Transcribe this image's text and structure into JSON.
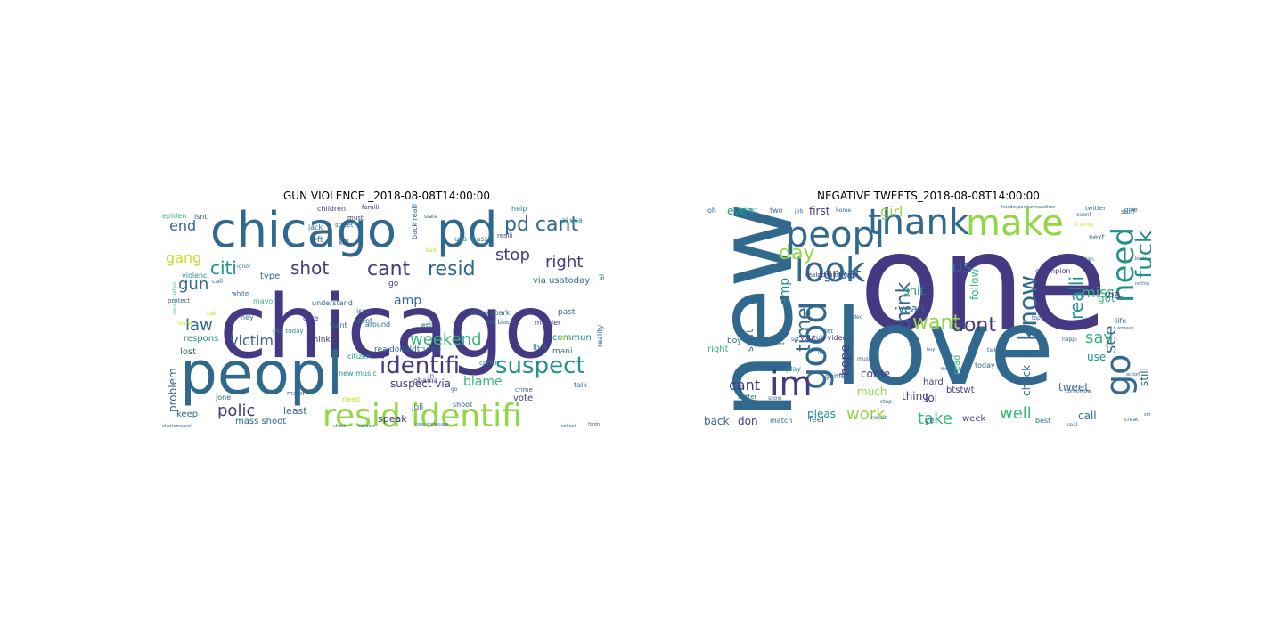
{
  "palette": {
    "purple": "#443a83",
    "blue": "#31688e",
    "teal": "#21918c",
    "green": "#35b779",
    "lime": "#90d743",
    "yellow": "#c2df23"
  },
  "left": {
    "title": "GUN VIOLENCE _2018-08-08T14:00:00",
    "words": [
      {
        "t": "chicago",
        "c": "purple",
        "s": 98
      },
      {
        "t": "chicago",
        "c": "blue",
        "s": 54
      },
      {
        "t": "pd",
        "c": "blue",
        "s": 54
      },
      {
        "t": "peopl",
        "c": "blue",
        "s": 66
      },
      {
        "t": "resid identifi",
        "c": "lime",
        "s": 36
      },
      {
        "t": "identifi",
        "c": "purple",
        "s": 26
      },
      {
        "t": "suspect",
        "c": "teal",
        "s": 26
      },
      {
        "t": "pd cant",
        "c": "blue",
        "s": 22
      },
      {
        "t": "cant",
        "c": "purple",
        "s": 22
      },
      {
        "t": "resid",
        "c": "blue",
        "s": 22
      },
      {
        "t": "shot",
        "c": "purple",
        "s": 20
      },
      {
        "t": "citi",
        "c": "teal",
        "s": 20
      },
      {
        "t": "right",
        "c": "purple",
        "s": 18
      },
      {
        "t": "stop",
        "c": "purple",
        "s": 18
      },
      {
        "t": "weekend",
        "c": "green",
        "s": 18
      },
      {
        "t": "victim",
        "c": "blue",
        "s": 16
      },
      {
        "t": "polic",
        "c": "purple",
        "s": 18
      },
      {
        "t": "gun",
        "c": "blue",
        "s": 18
      },
      {
        "t": "law",
        "c": "blue",
        "s": 18
      },
      {
        "t": "end",
        "c": "blue",
        "s": 16
      },
      {
        "t": "gang",
        "c": "yellow",
        "s": 16
      },
      {
        "t": "amp",
        "c": "blue",
        "s": 14
      },
      {
        "t": "blame",
        "c": "green",
        "s": 14
      },
      {
        "t": "problem",
        "c": "blue",
        "s": 12
      },
      {
        "t": "via usatoday",
        "c": "blue",
        "s": 10
      },
      {
        "t": "suspect via",
        "c": "purple",
        "s": 12
      },
      {
        "t": "least",
        "c": "blue",
        "s": 11
      },
      {
        "t": "vote",
        "c": "purple",
        "s": 10
      },
      {
        "t": "commun",
        "c": "teal",
        "s": 10
      },
      {
        "t": "keep",
        "c": "blue",
        "s": 10
      },
      {
        "t": "mass shoot",
        "c": "blue",
        "s": 10
      },
      {
        "t": "speak",
        "c": "purple",
        "s": 11
      },
      {
        "t": "respons",
        "c": "teal",
        "s": 10
      },
      {
        "t": "lost",
        "c": "blue",
        "s": 10
      },
      {
        "t": "type",
        "c": "blue",
        "s": 10
      },
      {
        "t": "realdonaldtrump",
        "c": "blue",
        "s": 9
      },
      {
        "t": "children",
        "c": "purple",
        "s": 8
      },
      {
        "t": "famili",
        "c": "purple",
        "s": 7
      },
      {
        "t": "help",
        "c": "teal",
        "s": 8
      },
      {
        "t": "epiden",
        "c": "green",
        "s": 8
      },
      {
        "t": "isnt",
        "c": "blue",
        "s": 8
      },
      {
        "t": "must",
        "c": "purple",
        "s": 7
      },
      {
        "t": "al usa",
        "c": "teal",
        "s": 8
      },
      {
        "t": "back reality",
        "c": "blue",
        "s": 8
      },
      {
        "t": "think",
        "c": "purple",
        "s": 9
      },
      {
        "t": "left",
        "c": "blue",
        "s": 9
      },
      {
        "t": "kill",
        "c": "purple",
        "s": 8
      },
      {
        "t": "usa mass",
        "c": "teal",
        "s": 8
      },
      {
        "t": "live",
        "c": "blue",
        "s": 9
      },
      {
        "t": "mani",
        "c": "blue",
        "s": 9
      },
      {
        "t": "past",
        "c": "blue",
        "s": 9
      },
      {
        "t": "murder",
        "c": "purple",
        "s": 8
      },
      {
        "t": "reality",
        "c": "blue",
        "s": 8
      },
      {
        "t": "citizen",
        "c": "teal",
        "s": 8
      },
      {
        "t": "issu",
        "c": "blue",
        "s": 8
      },
      {
        "t": "understand",
        "c": "blue",
        "s": 8
      },
      {
        "t": "mayor",
        "c": "green",
        "s": 8
      },
      {
        "t": "violenc",
        "c": "teal",
        "s": 8
      },
      {
        "t": "white",
        "c": "blue",
        "s": 7
      },
      {
        "t": "protect",
        "c": "blue",
        "s": 7
      },
      {
        "t": "jack",
        "c": "blue",
        "s": 8
      },
      {
        "t": "street",
        "c": "blue",
        "s": 7
      },
      {
        "t": "care",
        "c": "purple",
        "s": 8
      },
      {
        "t": "dont",
        "c": "blue",
        "s": 8
      },
      {
        "t": "want",
        "c": "blue",
        "s": 8
      },
      {
        "t": "around",
        "c": "blue",
        "s": 8
      },
      {
        "t": "go",
        "c": "purple",
        "s": 9
      },
      {
        "t": "juli",
        "c": "blue",
        "s": 9
      },
      {
        "t": "shoot",
        "c": "blue",
        "s": 8
      },
      {
        "t": "crime",
        "c": "blue",
        "s": 7
      },
      {
        "t": "talk",
        "c": "blue",
        "s": 8
      },
      {
        "t": "obama",
        "c": "purple",
        "s": 8
      },
      {
        "t": "need",
        "c": "yellow",
        "s": 8
      },
      {
        "t": "major",
        "c": "blue",
        "s": 7
      },
      {
        "t": "hey",
        "c": "blue",
        "s": 8
      },
      {
        "t": "usa today",
        "c": "teal",
        "s": 7
      },
      {
        "t": "new music",
        "c": "teal",
        "s": 8
      },
      {
        "t": "jone",
        "c": "blue",
        "s": 8
      },
      {
        "t": "video spark",
        "c": "blue",
        "s": 8
      },
      {
        "t": "crimin",
        "c": "teal",
        "s": 7
      },
      {
        "t": "well",
        "c": "blue",
        "s": 7
      },
      {
        "t": "call",
        "c": "blue",
        "s": 7
      },
      {
        "t": "realli",
        "c": "purple",
        "s": 7
      },
      {
        "t": "juli black",
        "c": "blue",
        "s": 7
      },
      {
        "t": "music video",
        "c": "green",
        "s": 6
      },
      {
        "t": "ignor",
        "c": "blue",
        "s": 6
      },
      {
        "t": "bad",
        "c": "yellow",
        "s": 6
      },
      {
        "t": "state",
        "c": "blue",
        "s": 6
      },
      {
        "t": "al",
        "c": "blue",
        "s": 8
      },
      {
        "t": "in",
        "c": "blue",
        "s": 8
      },
      {
        "t": "go",
        "c": "blue",
        "s": 6
      },
      {
        "t": "see",
        "c": "yellow",
        "s": 7
      },
      {
        "t": "tak",
        "c": "yellow",
        "s": 7
      },
      {
        "t": "snow",
        "c": "yellow",
        "s": 6
      },
      {
        "t": "schools",
        "c": "blue",
        "s": 5
      },
      {
        "t": "charlemcarell",
        "c": "blue",
        "s": 5
      },
      {
        "t": "shoot",
        "c": "blue",
        "s": 5
      },
      {
        "t": "rone monkuwe",
        "c": "blue",
        "s": 5
      },
      {
        "t": "school",
        "c": "blue",
        "s": 5
      },
      {
        "t": "fordn",
        "c": "blue",
        "s": 5
      }
    ]
  },
  "right": {
    "title": "NEGATIVE TWEETS_2018-08-08T14:00:00",
    "words": [
      {
        "t": "one",
        "c": "purple",
        "s": 150
      },
      {
        "t": "love",
        "c": "blue",
        "s": 118
      },
      {
        "t": "new",
        "c": "blue",
        "s": 118
      },
      {
        "t": "peopl",
        "c": "blue",
        "s": 40
      },
      {
        "t": "thank",
        "c": "blue",
        "s": 40
      },
      {
        "t": "make",
        "c": "lime",
        "s": 40
      },
      {
        "t": "look",
        "c": "blue",
        "s": 38
      },
      {
        "t": "go",
        "c": "blue",
        "s": 38
      },
      {
        "t": "good",
        "c": "blue",
        "s": 40
      },
      {
        "t": "im",
        "c": "purple",
        "s": 38
      },
      {
        "t": "know",
        "c": "blue",
        "s": 28
      },
      {
        "t": "need",
        "c": "teal",
        "s": 34
      },
      {
        "t": "fuck",
        "c": "teal",
        "s": 26
      },
      {
        "t": "want",
        "c": "lime",
        "s": 22
      },
      {
        "t": "dont",
        "c": "purple",
        "s": 22
      },
      {
        "t": "time",
        "c": "blue",
        "s": 22
      },
      {
        "t": "day",
        "c": "lime",
        "s": 22
      },
      {
        "t": "think",
        "c": "blue",
        "s": 22
      },
      {
        "t": "realli",
        "c": "teal",
        "s": 20
      },
      {
        "t": "say",
        "c": "green",
        "s": 18
      },
      {
        "t": "work",
        "c": "lime",
        "s": 18
      },
      {
        "t": "take",
        "c": "green",
        "s": 18
      },
      {
        "t": "well",
        "c": "green",
        "s": 18
      },
      {
        "t": "see",
        "c": "blue",
        "s": 18
      },
      {
        "t": "us",
        "c": "blue",
        "s": 20
      },
      {
        "t": "great",
        "c": "blue",
        "s": 16
      },
      {
        "t": "girl",
        "c": "lime",
        "s": 16
      },
      {
        "t": "miss",
        "c": "green",
        "s": 16
      },
      {
        "t": "cant",
        "c": "purple",
        "s": 16
      },
      {
        "t": "amp",
        "c": "teal",
        "s": 14
      },
      {
        "t": "hope",
        "c": "purple",
        "s": 14
      },
      {
        "t": "shit",
        "c": "teal",
        "s": 13
      },
      {
        "t": "thing",
        "c": "purple",
        "s": 12
      },
      {
        "t": "come",
        "c": "purple",
        "s": 12
      },
      {
        "t": "much",
        "c": "lime",
        "s": 12
      },
      {
        "t": "check",
        "c": "blue",
        "s": 12
      },
      {
        "t": "tweet",
        "c": "blue",
        "s": 12
      },
      {
        "t": "call",
        "c": "blue",
        "s": 12
      },
      {
        "t": "back",
        "c": "blue",
        "s": 12
      },
      {
        "t": "don",
        "c": "purple",
        "s": 12
      },
      {
        "t": "even",
        "c": "teal",
        "s": 12
      },
      {
        "t": "first",
        "c": "purple",
        "s": 12
      },
      {
        "t": "follow",
        "c": "green",
        "s": 12
      },
      {
        "t": "yeah",
        "c": "blue",
        "s": 12
      },
      {
        "t": "got",
        "c": "green",
        "s": 12
      },
      {
        "t": "use",
        "c": "teal",
        "s": 12
      },
      {
        "t": "still",
        "c": "blue",
        "s": 12
      },
      {
        "t": "via",
        "c": "purple",
        "s": 12
      },
      {
        "t": "start",
        "c": "blue",
        "s": 11
      },
      {
        "t": "pleas",
        "c": "teal",
        "s": 12
      },
      {
        "t": "lol",
        "c": "purple",
        "s": 12
      },
      {
        "t": "hard",
        "c": "purple",
        "s": 10
      },
      {
        "t": "week",
        "c": "purple",
        "s": 10
      },
      {
        "t": "read",
        "c": "green",
        "s": 10
      },
      {
        "t": "btstwt",
        "c": "purple",
        "s": 10
      },
      {
        "t": "right",
        "c": "green",
        "s": 10
      },
      {
        "t": "youtub video",
        "c": "purple",
        "s": 8
      },
      {
        "t": "live",
        "c": "blue",
        "s": 8
      },
      {
        "t": "today",
        "c": "blue",
        "s": 8
      },
      {
        "t": "two",
        "c": "blue",
        "s": 8
      },
      {
        "t": "oh",
        "c": "blue",
        "s": 8
      },
      {
        "t": "latest",
        "c": "teal",
        "s": 8
      },
      {
        "t": "realdonaldtrump",
        "c": "purple",
        "s": 7
      },
      {
        "t": "trump",
        "c": "yellow",
        "s": 7
      },
      {
        "t": "twitter",
        "c": "blue",
        "s": 7
      },
      {
        "t": "stuff",
        "c": "blue",
        "s": 7
      },
      {
        "t": "next",
        "c": "blue",
        "s": 8
      },
      {
        "t": "champion",
        "c": "purple",
        "s": 8
      },
      {
        "t": "play",
        "c": "teal",
        "s": 8
      },
      {
        "t": "boy",
        "c": "blue",
        "s": 9
      },
      {
        "t": "game",
        "c": "blue",
        "s": 8
      },
      {
        "t": "better",
        "c": "blue",
        "s": 7
      },
      {
        "t": "match",
        "c": "blue",
        "s": 8
      },
      {
        "t": "feel",
        "c": "blue",
        "s": 9
      },
      {
        "t": "best",
        "c": "blue",
        "s": 8
      },
      {
        "t": "ye",
        "c": "blue",
        "s": 9
      },
      {
        "t": "life",
        "c": "blue",
        "s": 8
      },
      {
        "t": "give",
        "c": "blue",
        "s": 7
      },
      {
        "t": "stop",
        "c": "blue",
        "s": 6
      },
      {
        "t": "tomorrow",
        "c": "blue",
        "s": 6
      },
      {
        "t": "event",
        "c": "blue",
        "s": 6
      },
      {
        "t": "job",
        "c": "blue",
        "s": 6
      },
      {
        "t": "set",
        "c": "blue",
        "s": 6
      },
      {
        "t": "let",
        "c": "blue",
        "s": 7
      },
      {
        "t": "home",
        "c": "blue",
        "s": 6
      },
      {
        "t": "tan",
        "c": "blue",
        "s": 6
      },
      {
        "t": "talk",
        "c": "blue",
        "s": 6
      },
      {
        "t": "top",
        "c": "blue",
        "s": 6
      },
      {
        "t": "vote",
        "c": "blue",
        "s": 6
      },
      {
        "t": "snow",
        "c": "blue",
        "s": 6
      },
      {
        "t": "happi",
        "c": "blue",
        "s": 6
      },
      {
        "t": "music",
        "c": "blue",
        "s": 6
      },
      {
        "t": "result",
        "c": "blue",
        "s": 6
      },
      {
        "t": "real",
        "c": "blue",
        "s": 6
      },
      {
        "t": "creat",
        "c": "blue",
        "s": 6
      },
      {
        "t": "action",
        "c": "blue",
        "s": 5
      },
      {
        "t": "video",
        "c": "blue",
        "s": 6
      },
      {
        "t": "smile",
        "c": "blue",
        "s": 5
      },
      {
        "t": "point",
        "c": "blue",
        "s": 5
      },
      {
        "t": "buy",
        "c": "blue",
        "s": 5
      },
      {
        "t": "fire",
        "c": "blue",
        "s": 5
      },
      {
        "t": "basic",
        "c": "blue",
        "s": 5
      },
      {
        "t": "amway",
        "c": "blue",
        "s": 5
      },
      {
        "t": "lost",
        "c": "blue",
        "s": 5
      },
      {
        "t": "nothin",
        "c": "blue",
        "s": 5
      },
      {
        "t": "hoodsuperstarmarathon",
        "c": "blue",
        "s": 5
      }
    ]
  }
}
